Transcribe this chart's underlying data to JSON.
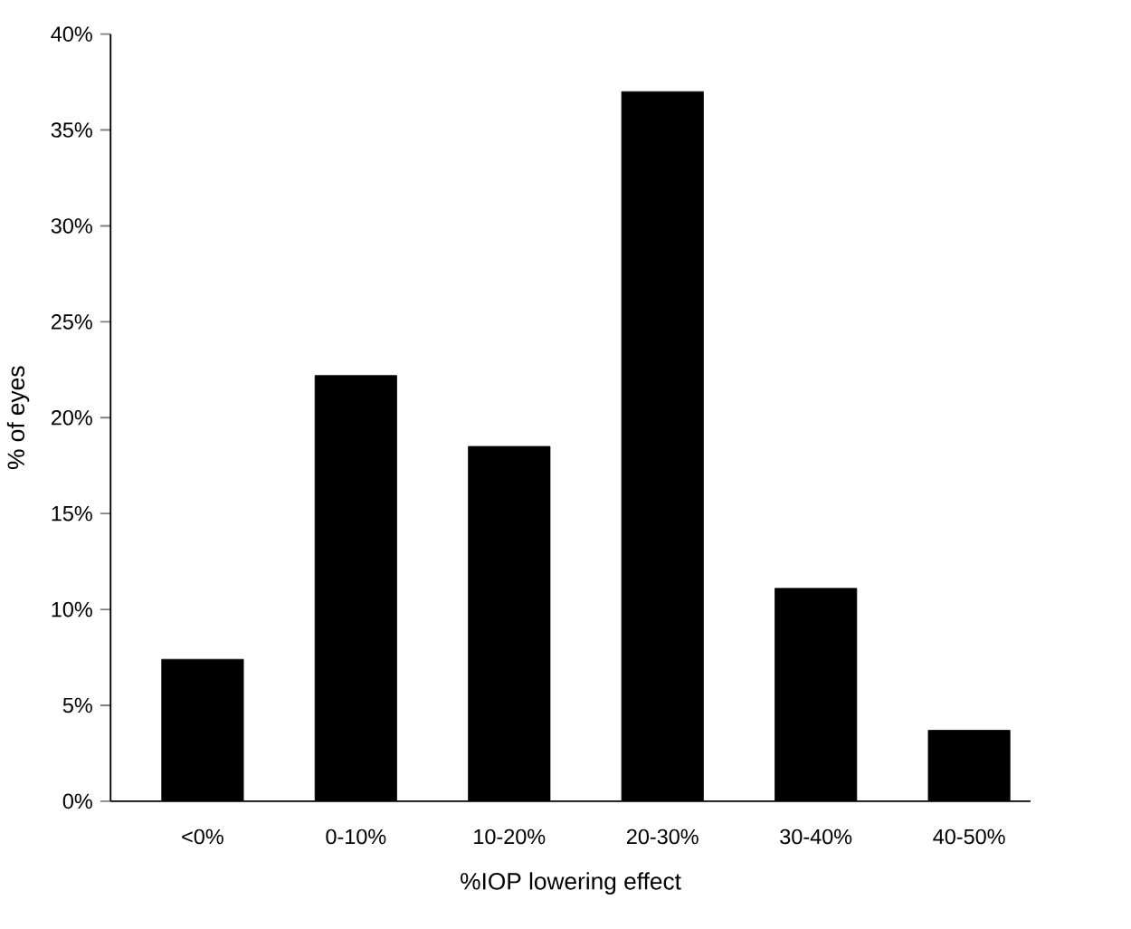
{
  "chart_data": {
    "type": "bar",
    "xlabel": "%IOP lowering effect",
    "ylabel": "% of eyes",
    "categories": [
      "<0%",
      "0-10%",
      "10-20%",
      "20-30%",
      "30-40%",
      "40-50%"
    ],
    "values": [
      7.4,
      22.2,
      18.5,
      37.0,
      11.1,
      3.7
    ],
    "color": "#000000",
    "ylim": [
      0,
      40
    ],
    "yticks": [
      {
        "value": 0,
        "label": "0%"
      },
      {
        "value": 5,
        "label": "5%"
      },
      {
        "value": 10,
        "label": "10%"
      },
      {
        "value": 15,
        "label": "15%"
      },
      {
        "value": 20,
        "label": "20%"
      },
      {
        "value": 25,
        "label": "25%"
      },
      {
        "value": 30,
        "label": "30%"
      },
      {
        "value": 35,
        "label": "35%"
      },
      {
        "value": 40,
        "label": "40%"
      }
    ]
  }
}
